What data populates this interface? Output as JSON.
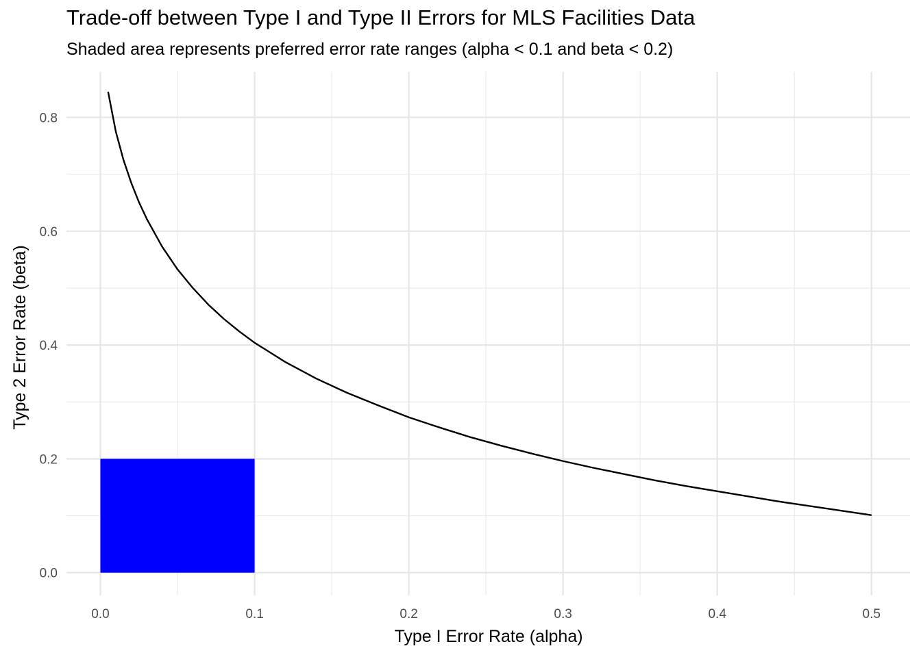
{
  "chart_data": {
    "type": "line",
    "title": "Trade-off between Type I and Type II Errors for MLS Facilities Data",
    "subtitle": "Shaded area represents preferred error rate ranges (alpha < 0.1 and beta < 0.2)",
    "xlabel": "Type I Error Rate (alpha)",
    "ylabel": "Type 2 Error Rate (beta)",
    "xlim": [
      -0.022,
      0.525
    ],
    "ylim": [
      -0.04,
      0.88
    ],
    "x_ticks": [
      "0.0",
      "0.1",
      "0.2",
      "0.3",
      "0.4",
      "0.5"
    ],
    "y_ticks": [
      "0.0",
      "0.2",
      "0.4",
      "0.6",
      "0.8"
    ],
    "grid": true,
    "legend": "none",
    "shaded_region": {
      "x": [
        0,
        0.1
      ],
      "y": [
        0,
        0.2
      ],
      "color": "#0000ff"
    },
    "series": [
      {
        "line_color": "#000000",
        "x": [
          0.005,
          0.01,
          0.015,
          0.02,
          0.025,
          0.03,
          0.04,
          0.05,
          0.06,
          0.07,
          0.08,
          0.09,
          0.1,
          0.12,
          0.14,
          0.16,
          0.18,
          0.2,
          0.22,
          0.24,
          0.26,
          0.28,
          0.3,
          0.32,
          0.34,
          0.36,
          0.38,
          0.4,
          0.42,
          0.44,
          0.46,
          0.48,
          0.5
        ],
        "y": [
          0.845,
          0.775,
          0.725,
          0.685,
          0.651,
          0.622,
          0.573,
          0.533,
          0.5,
          0.471,
          0.446,
          0.424,
          0.404,
          0.37,
          0.341,
          0.316,
          0.294,
          0.273,
          0.255,
          0.238,
          0.223,
          0.209,
          0.196,
          0.184,
          0.173,
          0.162,
          0.152,
          0.143,
          0.134,
          0.125,
          0.117,
          0.109,
          0.101
        ]
      }
    ]
  }
}
